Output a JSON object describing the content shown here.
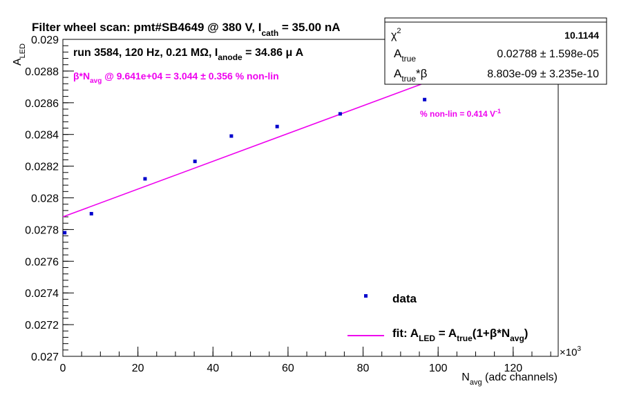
{
  "title": {
    "text": "Filter wheel scan: pmt#SB4649 @   380 V, I",
    "sub": "cath",
    "tail": " = 35.00 nA"
  },
  "run_info": {
    "text": "run 3584, 120 Hz, 0.21 MΩ, I",
    "sub": "anode",
    "tail": " = 34.86 μ A"
  },
  "beta_text": {
    "pre": "β*N",
    "sub": "avg",
    "tail": " @ 9.641e+04 = 3.044 ± 0.356 % non-lin"
  },
  "nonlin_text": {
    "text": "% non-lin = 0.414 V",
    "sup": "-1"
  },
  "stats": {
    "chi2_label": "χ",
    "chi2_sup": "2",
    "chi2_value": "10.1144",
    "atrue_label": "A",
    "atrue_sub": "true",
    "atrue_value": "0.02788 ± 1.598e-05",
    "atb_label": "A",
    "atb_sub": "true",
    "atb_tail": "*β",
    "atb_value": "8.803e-09 ± 3.235e-10"
  },
  "legend": {
    "data_label": "data",
    "fit_label": "fit: A",
    "fit_sub1": "LED",
    "fit_mid": " = A",
    "fit_sub2": "true",
    "fit_mid2": "(1+β*N",
    "fit_sub3": "avg",
    "fit_tail": ")"
  },
  "colors": {
    "data": "#0000cc",
    "fit": "#ee00ee",
    "axis": "#000000"
  },
  "chart_data": {
    "type": "scatter",
    "xlabel": "N",
    "xlabel_sub": "avg",
    "xlabel_tail": " (adc channels)",
    "ylabel": "A",
    "ylabel_sub": "LED",
    "x_multiplier": "×10",
    "x_multiplier_sup": "3",
    "xlim": [
      0,
      132
    ],
    "ylim": [
      0.027,
      0.029
    ],
    "x_ticks": [
      0,
      20,
      40,
      60,
      80,
      100,
      120
    ],
    "y_ticks": [
      0.027,
      0.0272,
      0.0274,
      0.0276,
      0.0278,
      0.028,
      0.0282,
      0.0284,
      0.0286,
      0.0288,
      0.029
    ],
    "y_tick_labels": [
      "0.027",
      "0.0272",
      "0.0274",
      "0.0276",
      "0.0278",
      "0.028",
      "0.0282",
      "0.0284",
      "0.0286",
      "0.0288",
      "0.029"
    ],
    "series": [
      {
        "name": "data",
        "points": [
          {
            "x": 0.5,
            "y": 0.02778,
            "err": 4e-06
          },
          {
            "x": 7.6,
            "y": 0.0279,
            "err": 4e-06
          },
          {
            "x": 21.9,
            "y": 0.02812,
            "err": 5e-06
          },
          {
            "x": 35.2,
            "y": 0.02823,
            "err": 3e-06
          },
          {
            "x": 44.9,
            "y": 0.02839,
            "err": 4e-06
          },
          {
            "x": 57.1,
            "y": 0.02845,
            "err": 4e-06
          },
          {
            "x": 73.9,
            "y": 0.02853,
            "err": 5e-06
          },
          {
            "x": 96.4,
            "y": 0.02862,
            "err": 4e-06
          }
        ]
      },
      {
        "name": "fit",
        "line": {
          "x": [
            0,
            96.4
          ],
          "y": [
            0.02788,
            0.028725
          ]
        }
      }
    ]
  }
}
